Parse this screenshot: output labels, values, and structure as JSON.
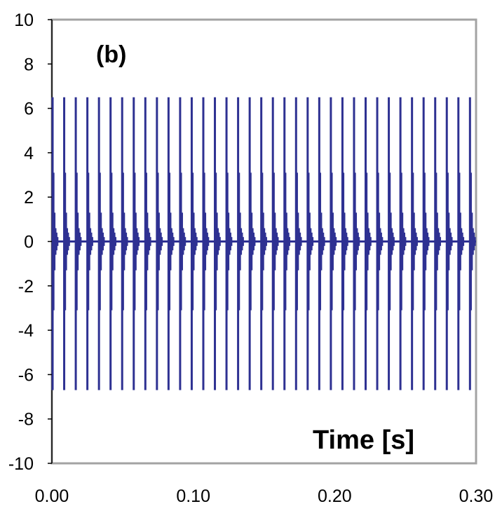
{
  "chart_data": {
    "type": "line",
    "panel_label": "(b)",
    "xlabel": "Time [s]",
    "ylabel": "",
    "xlim": [
      0.0,
      0.3
    ],
    "ylim": [
      -10,
      10
    ],
    "x_ticks": [
      "0.00",
      "0.10",
      "0.20",
      "0.30"
    ],
    "x_tick_values": [
      0.0,
      0.1,
      0.2,
      0.3
    ],
    "y_ticks": [
      "10",
      "8",
      "6",
      "4",
      "2",
      "0",
      "-2",
      "-4",
      "-6",
      "-8",
      "-10"
    ],
    "y_tick_values": [
      10,
      8,
      6,
      4,
      2,
      0,
      -2,
      -4,
      -6,
      -8,
      -10
    ],
    "grid": false,
    "color": "#2e3192",
    "series": [
      {
        "description_free": true,
        "pulse_period": 0.0082,
        "pulse_times": [
          0.0005,
          0.0087,
          0.0169,
          0.0251,
          0.0333,
          0.0415,
          0.0497,
          0.0579,
          0.0661,
          0.0743,
          0.0825,
          0.0907,
          0.0989,
          0.1071,
          0.1153,
          0.1235,
          0.1317,
          0.1399,
          0.1481,
          0.1563,
          0.1645,
          0.1727,
          0.1809,
          0.1891,
          0.1973,
          0.2055,
          0.2137,
          0.2219,
          0.2301,
          0.2383,
          0.2465,
          0.2547,
          0.2629,
          0.2711,
          0.2793,
          0.2875,
          0.2957
        ],
        "pulse_peak": 6.5,
        "pulse_trough": -6.7,
        "decay_levels": [
          3.1,
          1.3,
          0.6,
          0.4,
          0.2
        ]
      }
    ]
  }
}
